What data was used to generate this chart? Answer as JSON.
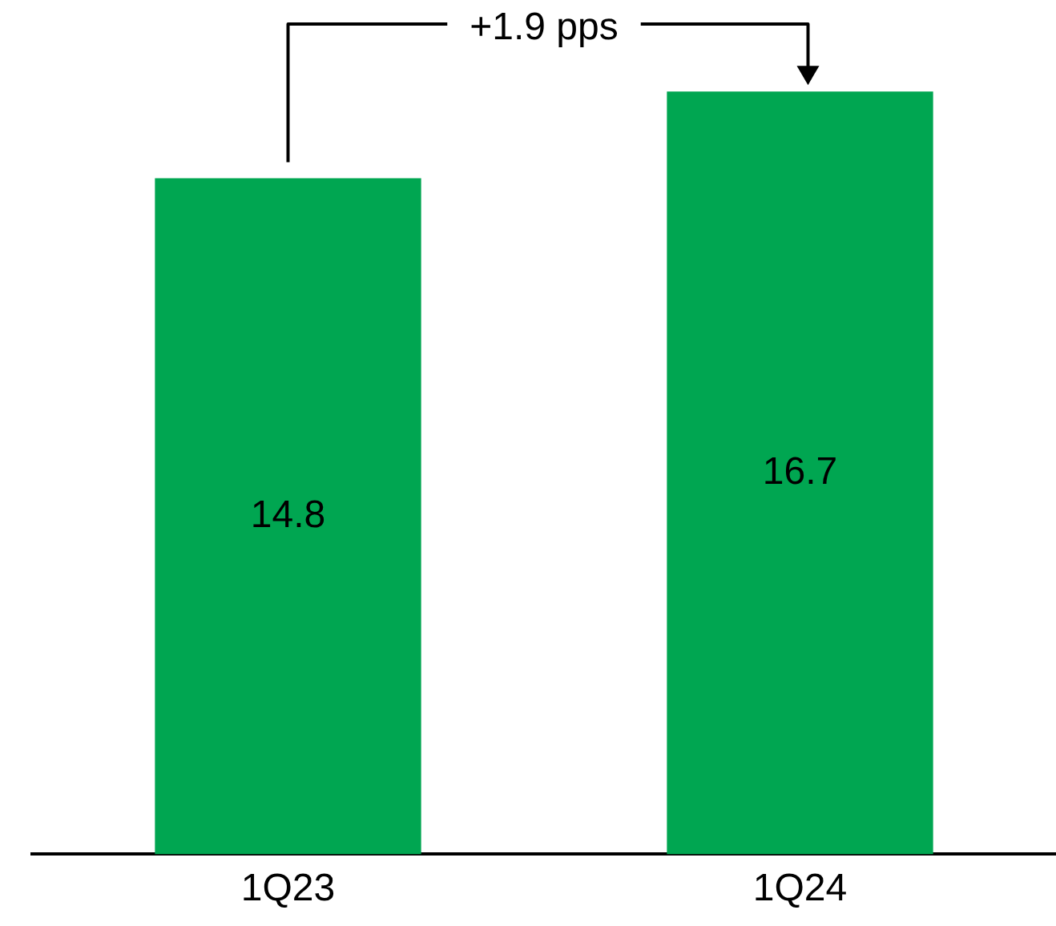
{
  "chart_data": {
    "type": "bar",
    "categories": [
      "1Q23",
      "1Q24"
    ],
    "values": [
      14.8,
      16.7
    ],
    "color": "#00a651",
    "data_labels": true,
    "grid": false,
    "legend": false,
    "tick_labels": "x",
    "annotations": [
      "+1.9 pps"
    ]
  }
}
